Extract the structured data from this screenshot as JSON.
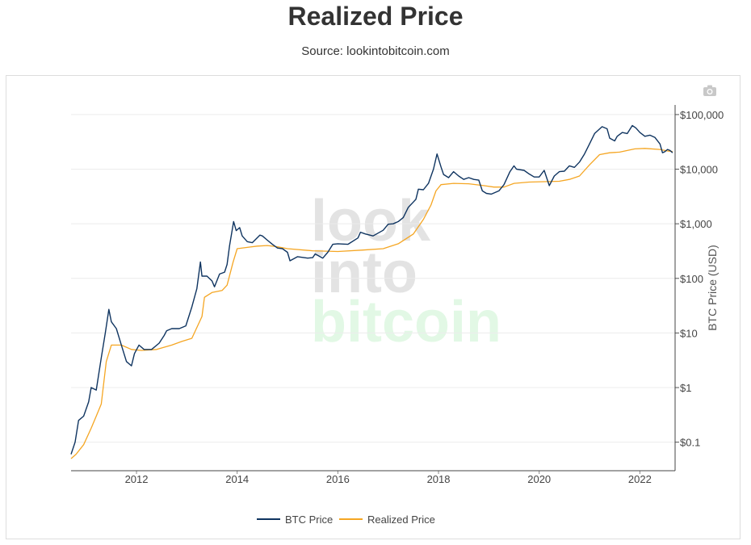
{
  "page": {
    "title": "Realized Price",
    "subtitle": "Source: lookintobitcoin.com",
    "watermark_lines": [
      "look",
      "into",
      "bitcoin"
    ],
    "camera_icon": "camera-icon"
  },
  "chart_data": {
    "type": "line",
    "title": "Realized Price",
    "xlabel": "",
    "ylabel": "BTC Price (USD)",
    "yscale": "log",
    "xlim": [
      2010.7,
      2022.7
    ],
    "ylim": [
      0.03,
      150000
    ],
    "x_ticks": [
      2012,
      2014,
      2016,
      2018,
      2020,
      2022
    ],
    "x_tick_labels": [
      "2012",
      "2014",
      "2016",
      "2018",
      "2020",
      "2022"
    ],
    "y_ticks": [
      0.1,
      1,
      10,
      100,
      1000,
      10000,
      100000
    ],
    "y_tick_labels": [
      "$0.1",
      "$1",
      "$10",
      "$100",
      "$1,000",
      "$10,000",
      "$100,000"
    ],
    "legend_position": "bottom-center",
    "series": [
      {
        "name": "BTC Price",
        "color": "#0f3460",
        "points": [
          [
            2010.7,
            0.06
          ],
          [
            2010.78,
            0.1
          ],
          [
            2010.85,
            0.25
          ],
          [
            2010.95,
            0.3
          ],
          [
            2011.05,
            0.55
          ],
          [
            2011.1,
            1.0
          ],
          [
            2011.2,
            0.9
          ],
          [
            2011.3,
            3.5
          ],
          [
            2011.38,
            10
          ],
          [
            2011.45,
            27
          ],
          [
            2011.5,
            16
          ],
          [
            2011.6,
            12
          ],
          [
            2011.7,
            6
          ],
          [
            2011.8,
            3.0
          ],
          [
            2011.9,
            2.5
          ],
          [
            2011.96,
            4.2
          ],
          [
            2012.05,
            6
          ],
          [
            2012.15,
            5
          ],
          [
            2012.3,
            5
          ],
          [
            2012.45,
            6.5
          ],
          [
            2012.55,
            9
          ],
          [
            2012.6,
            11
          ],
          [
            2012.7,
            12
          ],
          [
            2012.85,
            12
          ],
          [
            2012.98,
            13.5
          ],
          [
            2013.1,
            30
          ],
          [
            2013.2,
            65
          ],
          [
            2013.27,
            200
          ],
          [
            2013.3,
            110
          ],
          [
            2013.4,
            110
          ],
          [
            2013.5,
            90
          ],
          [
            2013.55,
            70
          ],
          [
            2013.65,
            120
          ],
          [
            2013.75,
            130
          ],
          [
            2013.8,
            180
          ],
          [
            2013.85,
            400
          ],
          [
            2013.93,
            1100
          ],
          [
            2013.98,
            750
          ],
          [
            2014.05,
            850
          ],
          [
            2014.1,
            600
          ],
          [
            2014.2,
            470
          ],
          [
            2014.3,
            450
          ],
          [
            2014.45,
            620
          ],
          [
            2014.5,
            600
          ],
          [
            2014.6,
            500
          ],
          [
            2014.7,
            420
          ],
          [
            2014.8,
            360
          ],
          [
            2014.9,
            350
          ],
          [
            2015.0,
            300
          ],
          [
            2015.05,
            210
          ],
          [
            2015.2,
            250
          ],
          [
            2015.4,
            235
          ],
          [
            2015.5,
            240
          ],
          [
            2015.55,
            280
          ],
          [
            2015.7,
            235
          ],
          [
            2015.8,
            300
          ],
          [
            2015.9,
            420
          ],
          [
            2016.0,
            430
          ],
          [
            2016.2,
            420
          ],
          [
            2016.4,
            550
          ],
          [
            2016.45,
            700
          ],
          [
            2016.55,
            650
          ],
          [
            2016.7,
            600
          ],
          [
            2016.9,
            760
          ],
          [
            2017.0,
            980
          ],
          [
            2017.1,
            1000
          ],
          [
            2017.2,
            1100
          ],
          [
            2017.3,
            1300
          ],
          [
            2017.4,
            2000
          ],
          [
            2017.5,
            2500
          ],
          [
            2017.55,
            2800
          ],
          [
            2017.6,
            4300
          ],
          [
            2017.7,
            4200
          ],
          [
            2017.8,
            5500
          ],
          [
            2017.9,
            10000
          ],
          [
            2017.97,
            19000
          ],
          [
            2018.05,
            11000
          ],
          [
            2018.1,
            8000
          ],
          [
            2018.2,
            7000
          ],
          [
            2018.3,
            9000
          ],
          [
            2018.4,
            7500
          ],
          [
            2018.5,
            6500
          ],
          [
            2018.6,
            7000
          ],
          [
            2018.7,
            6500
          ],
          [
            2018.8,
            6300
          ],
          [
            2018.87,
            4000
          ],
          [
            2018.95,
            3600
          ],
          [
            2019.05,
            3500
          ],
          [
            2019.2,
            4000
          ],
          [
            2019.3,
            5200
          ],
          [
            2019.42,
            9000
          ],
          [
            2019.5,
            11500
          ],
          [
            2019.55,
            10000
          ],
          [
            2019.7,
            9500
          ],
          [
            2019.8,
            8200
          ],
          [
            2019.9,
            7200
          ],
          [
            2020.0,
            7200
          ],
          [
            2020.1,
            9500
          ],
          [
            2020.2,
            5000
          ],
          [
            2020.3,
            7500
          ],
          [
            2020.4,
            9000
          ],
          [
            2020.5,
            9200
          ],
          [
            2020.6,
            11500
          ],
          [
            2020.7,
            10800
          ],
          [
            2020.8,
            13500
          ],
          [
            2020.9,
            19000
          ],
          [
            2021.0,
            29000
          ],
          [
            2021.1,
            45000
          ],
          [
            2021.25,
            60000
          ],
          [
            2021.35,
            55000
          ],
          [
            2021.4,
            37000
          ],
          [
            2021.5,
            33000
          ],
          [
            2021.55,
            40000
          ],
          [
            2021.65,
            47000
          ],
          [
            2021.75,
            45000
          ],
          [
            2021.85,
            63000
          ],
          [
            2021.92,
            57000
          ],
          [
            2022.0,
            47000
          ],
          [
            2022.1,
            40000
          ],
          [
            2022.2,
            42000
          ],
          [
            2022.3,
            38000
          ],
          [
            2022.4,
            29000
          ],
          [
            2022.45,
            20000
          ],
          [
            2022.5,
            21000
          ],
          [
            2022.55,
            23000
          ],
          [
            2022.6,
            22000
          ],
          [
            2022.65,
            20000
          ]
        ]
      },
      {
        "name": "Realized Price",
        "color": "#f5a623",
        "points": [
          [
            2010.7,
            0.05
          ],
          [
            2010.8,
            0.06
          ],
          [
            2010.95,
            0.09
          ],
          [
            2011.1,
            0.18
          ],
          [
            2011.2,
            0.3
          ],
          [
            2011.3,
            0.5
          ],
          [
            2011.4,
            3.0
          ],
          [
            2011.5,
            6.0
          ],
          [
            2011.7,
            6.0
          ],
          [
            2011.9,
            5.0
          ],
          [
            2012.1,
            4.8
          ],
          [
            2012.4,
            5.0
          ],
          [
            2012.7,
            6.0
          ],
          [
            2012.9,
            7.0
          ],
          [
            2013.1,
            8.0
          ],
          [
            2013.3,
            20
          ],
          [
            2013.35,
            45
          ],
          [
            2013.5,
            55
          ],
          [
            2013.7,
            60
          ],
          [
            2013.8,
            75
          ],
          [
            2013.92,
            200
          ],
          [
            2014.0,
            350
          ],
          [
            2014.2,
            370
          ],
          [
            2014.4,
            390
          ],
          [
            2014.6,
            400
          ],
          [
            2014.8,
            380
          ],
          [
            2015.0,
            350
          ],
          [
            2015.5,
            320
          ],
          [
            2016.0,
            310
          ],
          [
            2016.5,
            330
          ],
          [
            2016.9,
            350
          ],
          [
            2017.2,
            430
          ],
          [
            2017.5,
            650
          ],
          [
            2017.7,
            1200
          ],
          [
            2017.85,
            2200
          ],
          [
            2017.95,
            4000
          ],
          [
            2018.05,
            5200
          ],
          [
            2018.3,
            5500
          ],
          [
            2018.6,
            5400
          ],
          [
            2018.9,
            5000
          ],
          [
            2019.1,
            4700
          ],
          [
            2019.3,
            4700
          ],
          [
            2019.5,
            5500
          ],
          [
            2019.8,
            5800
          ],
          [
            2020.1,
            5900
          ],
          [
            2020.4,
            6000
          ],
          [
            2020.6,
            6500
          ],
          [
            2020.8,
            7500
          ],
          [
            2021.0,
            12000
          ],
          [
            2021.2,
            18500
          ],
          [
            2021.4,
            20000
          ],
          [
            2021.6,
            20500
          ],
          [
            2021.9,
            23500
          ],
          [
            2022.1,
            24000
          ],
          [
            2022.4,
            23000
          ],
          [
            2022.55,
            21500
          ],
          [
            2022.65,
            21000
          ]
        ]
      }
    ]
  }
}
